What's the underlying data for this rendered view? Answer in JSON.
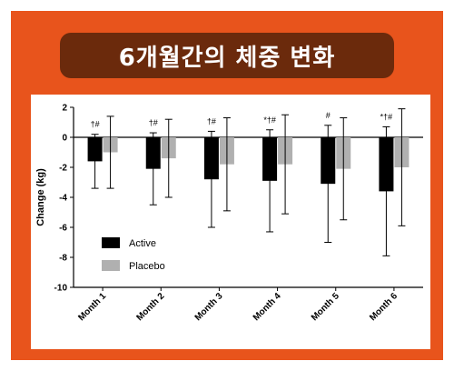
{
  "header": {
    "title": "6개월간의 체중 변화"
  },
  "colors": {
    "frame": "#e8541c",
    "title_bg": "#6b2a0c",
    "active": "#000000",
    "placebo": "#b0b0b0"
  },
  "chart_data": {
    "type": "bar",
    "title": "",
    "xlabel": "",
    "ylabel": "Change (kg)",
    "ylim": [
      -10,
      2
    ],
    "yticks": [
      2,
      0,
      -2,
      -4,
      -6,
      -8,
      -10
    ],
    "grid": false,
    "legend_position": "bottom-left",
    "categories": [
      "Month 1",
      "Month 2",
      "Month 3",
      "Month 4",
      "Month 5",
      "Month 6"
    ],
    "series": [
      {
        "name": "Active",
        "values": [
          -1.6,
          -2.1,
          -2.8,
          -2.9,
          -3.1,
          -3.6
        ],
        "error": [
          1.8,
          2.4,
          3.2,
          3.4,
          3.9,
          4.3
        ]
      },
      {
        "name": "Placebo",
        "values": [
          -1.0,
          -1.4,
          -1.8,
          -1.8,
          -2.1,
          -2.0
        ],
        "error": [
          2.4,
          2.6,
          3.1,
          3.3,
          3.4,
          3.9
        ]
      }
    ],
    "annotations": [
      "†#",
      "†#",
      "†#",
      "*†#",
      "#",
      "*†#"
    ]
  }
}
